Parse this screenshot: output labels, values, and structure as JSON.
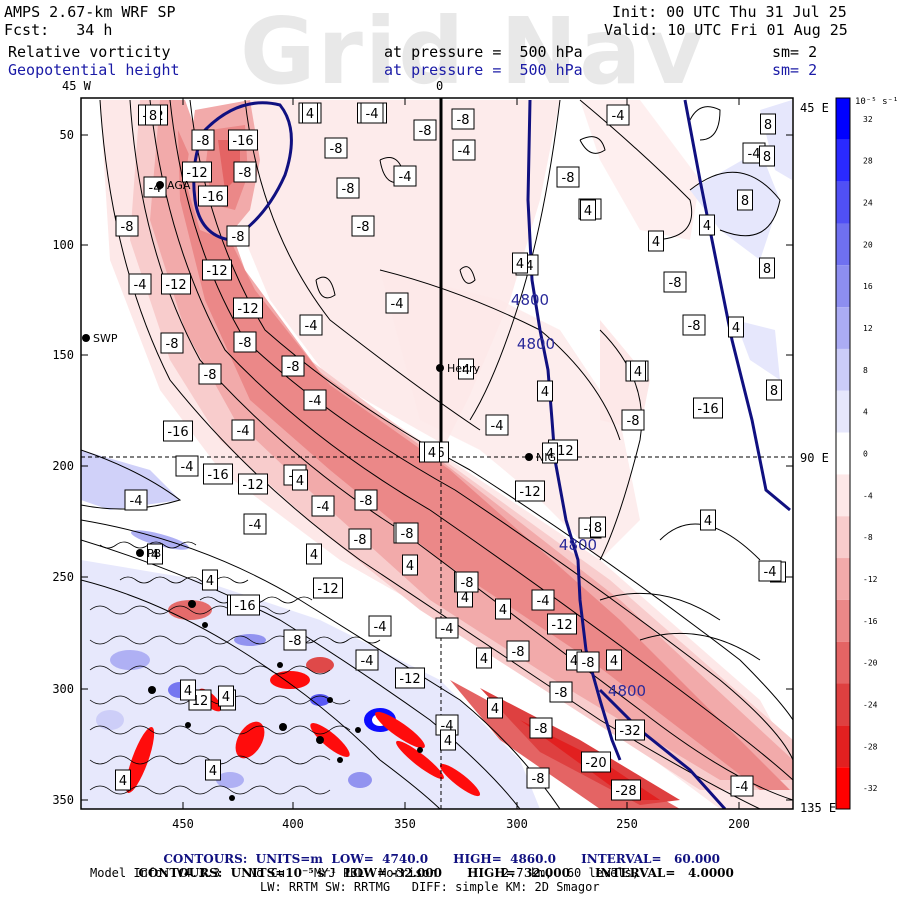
{
  "watermark": "Grid Nav",
  "header": {
    "model": "AMPS 2.67-km WRF SP",
    "init": "Init: 00 UTC Thu 31 Jul 25",
    "fcst": "Fcst:   34 h",
    "valid": "Valid: 10 UTC Fri 01 Aug 25",
    "field1": "Relative vorticity",
    "field1_pressure": "at pressure =  500 hPa",
    "field1_sm": "sm= 2",
    "field2": "Geopotential height",
    "field2_pressure": "at pressure =  500 hPa",
    "field2_sm": "sm= 2"
  },
  "axes": {
    "x_ticks": [
      "450",
      "400",
      "350",
      "300",
      "250",
      "200"
    ],
    "y_ticks": [
      "50",
      "100",
      "150",
      "200",
      "250",
      "300",
      "350"
    ],
    "lon_labels": {
      "top_left": "45 W",
      "top_center": "0",
      "right_top": "45 E",
      "right_mid": "90 E",
      "right_bottom": "135 E"
    }
  },
  "colorbar": {
    "unit": "10⁻⁵ s⁻¹",
    "ticks": [
      "32",
      "28",
      "24",
      "20",
      "16",
      "12",
      "8",
      "4",
      "0",
      "-4",
      "-8",
      "-12",
      "-16",
      "-20",
      "-24",
      "-28",
      "-32"
    ],
    "colors": {
      "32": "#0000ff",
      "28": "#2a2aff",
      "24": "#5050f5",
      "20": "#6f70f0",
      "16": "#8d8ef0",
      "12": "#abacf4",
      "8": "#cbccf8",
      "4": "#e6e7fc",
      "0": "#ffffff",
      "-4": "#fde8e8",
      "-8": "#f8cccc",
      "-12": "#f2aaaa",
      "-16": "#eb8888",
      "-20": "#e46464",
      "-24": "#de4040",
      "-28": "#e22020",
      "-32": "#ff0000"
    }
  },
  "stations": [
    "AGA",
    "SWP",
    "Henry",
    "NIG",
    "PB"
  ],
  "contour_labels": {
    "vorticity": [
      "-12",
      "-8",
      "-12",
      "-8",
      "-8",
      "-8",
      "-4",
      "-4",
      "-16",
      "-8",
      "-12",
      "-8",
      "-8",
      "-4",
      "-4",
      "-8",
      "-4",
      "-16",
      "-8",
      "-8",
      "-4",
      "-8",
      "-4",
      "-12",
      "-8",
      "-8",
      "-12",
      "-4",
      "-4",
      "-12",
      "-8",
      "-4",
      "-8",
      "-4",
      "-8",
      "-8",
      "4",
      "-4",
      "-4",
      "-16",
      "-16",
      "-4",
      "-16",
      "-12",
      "-12",
      "-8",
      "-8",
      "-16",
      "-4",
      "-4",
      "-12",
      "-4",
      "-8",
      "-4",
      "-8",
      "-4",
      "-8",
      "4",
      "4",
      "4",
      "8",
      "8",
      "8",
      "8",
      "4",
      "4",
      "4",
      "4",
      "8",
      "4",
      "4",
      "4",
      "4",
      "4",
      "4",
      "4",
      "4",
      "8",
      "4",
      "4",
      "4",
      "-4",
      "-16",
      "-4",
      "-16",
      "-12",
      "-4",
      "-8",
      "-12",
      "4",
      "-4",
      "-8",
      "-4",
      "4",
      "-8",
      "-12",
      "-8",
      "-8",
      "-8",
      "-20",
      "-28",
      "-32",
      "-4",
      "-4",
      "4",
      "4",
      "-8",
      "12",
      "4",
      "4",
      "4",
      "-8",
      "4",
      "4",
      "4",
      "4",
      "4",
      "8",
      "4",
      "-4",
      "-8",
      "-8"
    ],
    "height": [
      "4800",
      "4800",
      "4800",
      "4800"
    ]
  },
  "footer": {
    "line1": {
      "contours": "CONTOURS:",
      "units": "UNITS=m",
      "low": "LOW=  4740.0",
      "high": "HIGH=  4860.0",
      "interval": "INTERVAL=   60.000"
    },
    "line2": {
      "contours": "CONTOURS:",
      "units": "UNITS=10⁻⁵ s⁻¹",
      "low": "LOW= -32.000",
      "high": "HIGH=  32.000",
      "interval": "INTERVAL=   4.0000"
    },
    "line3": "Model Info: V4.3.3    No Cu    MYJ PBL  Morrison         2.7 km,  60 levels,",
    "line4": "LW: RRTM SW: RRTMG   DIFF: simple KM: 2D Smagor"
  }
}
